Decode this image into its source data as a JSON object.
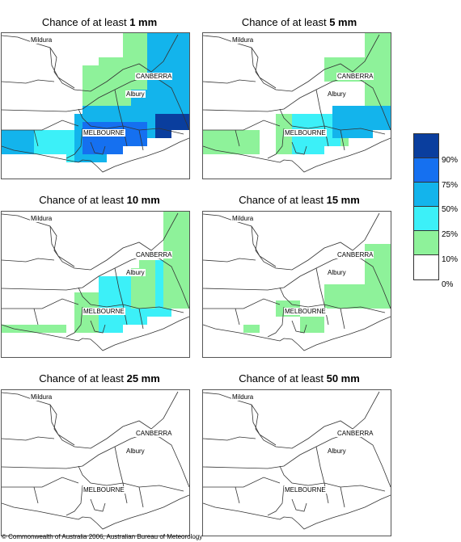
{
  "panels": [
    {
      "prefix": "Chance of at least ",
      "amount": "1 mm",
      "cities": {
        "mildura": "Mildura",
        "canberra": "CANBERRA",
        "albury": "Albury",
        "melbourne": "MELBOURNE"
      }
    },
    {
      "prefix": "Chance of at least ",
      "amount": "5 mm",
      "cities": {
        "mildura": "Mildura",
        "canberra": "CANBERRA",
        "albury": "Albury",
        "melbourne": "MELBOURNE"
      }
    },
    {
      "prefix": "Chance of at least ",
      "amount": "10 mm",
      "cities": {
        "mildura": "Mildura",
        "canberra": "CANBERRA",
        "albury": "Albury",
        "melbourne": "MELBOURNE"
      }
    },
    {
      "prefix": "Chance of at least ",
      "amount": "15 mm",
      "cities": {
        "mildura": "Mildura",
        "canberra": "CANBERRA",
        "albury": "Albury",
        "melbourne": "MELBOURNE"
      }
    },
    {
      "prefix": "Chance of at least ",
      "amount": "25 mm",
      "cities": {
        "mildura": "Mildura",
        "canberra": "CANBERRA",
        "albury": "Albury",
        "melbourne": "MELBOURNE"
      }
    },
    {
      "prefix": "Chance of at least ",
      "amount": "50 mm",
      "cities": {
        "mildura": "Mildura",
        "canberra": "CANBERRA",
        "albury": "Albury",
        "melbourne": "MELBOURNE"
      }
    }
  ],
  "legend": {
    "labels": [
      "90%",
      "75%",
      "50%",
      "25%",
      "10%",
      "0%"
    ],
    "colors": [
      "#0a3e9e",
      "#1570f0",
      "#13b4ec",
      "#3cf0f8",
      "#8ef29a",
      "#ffffff"
    ]
  },
  "copyright": "© Commonwealth of Australia 2006, Australian Bureau of Meteorology"
}
